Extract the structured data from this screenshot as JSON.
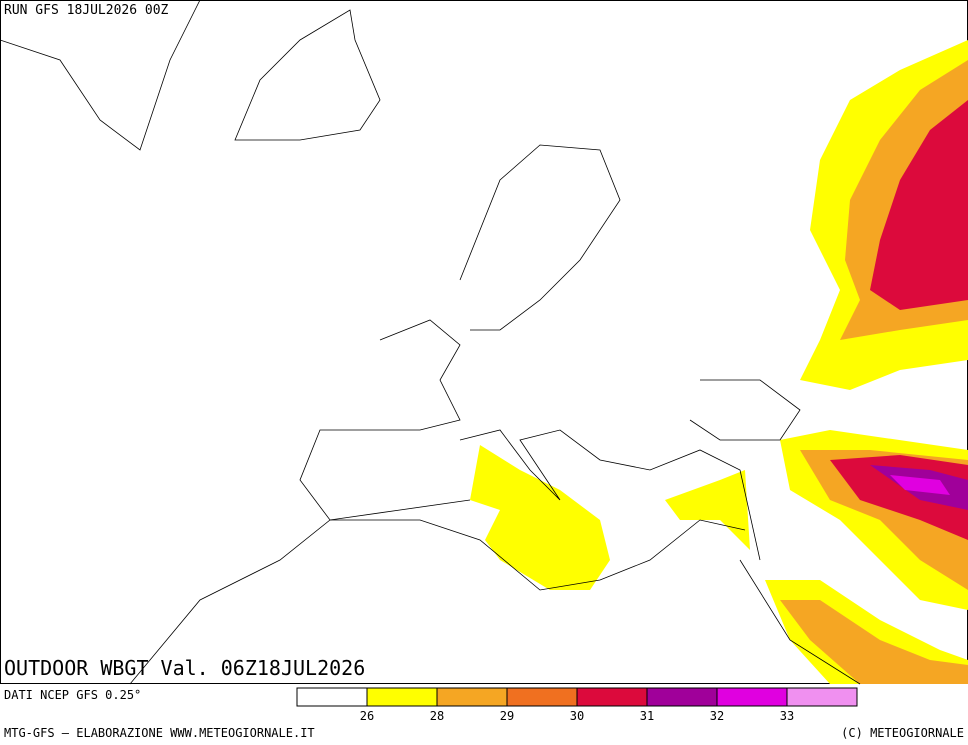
{
  "header": {
    "run": "RUN GFS 18JUL2026 00Z",
    "title": "OUTDOOR WBGT Val. 06Z18JUL2026",
    "source": "DATI NCEP GFS 0.25°"
  },
  "legend": {
    "colors": [
      "#ffffff",
      "#ffff00",
      "#f5a623",
      "#f07020",
      "#dc0a3c",
      "#a0009a",
      "#e000e0",
      "#f090f0"
    ],
    "ticks": [
      26,
      28,
      29,
      30,
      31,
      32,
      33
    ]
  },
  "footer": {
    "left": "MTG-GFS — ELABORAZIONE WWW.METEOGIORNALE.IT",
    "right": "(C) METEOGIORNALE"
  }
}
